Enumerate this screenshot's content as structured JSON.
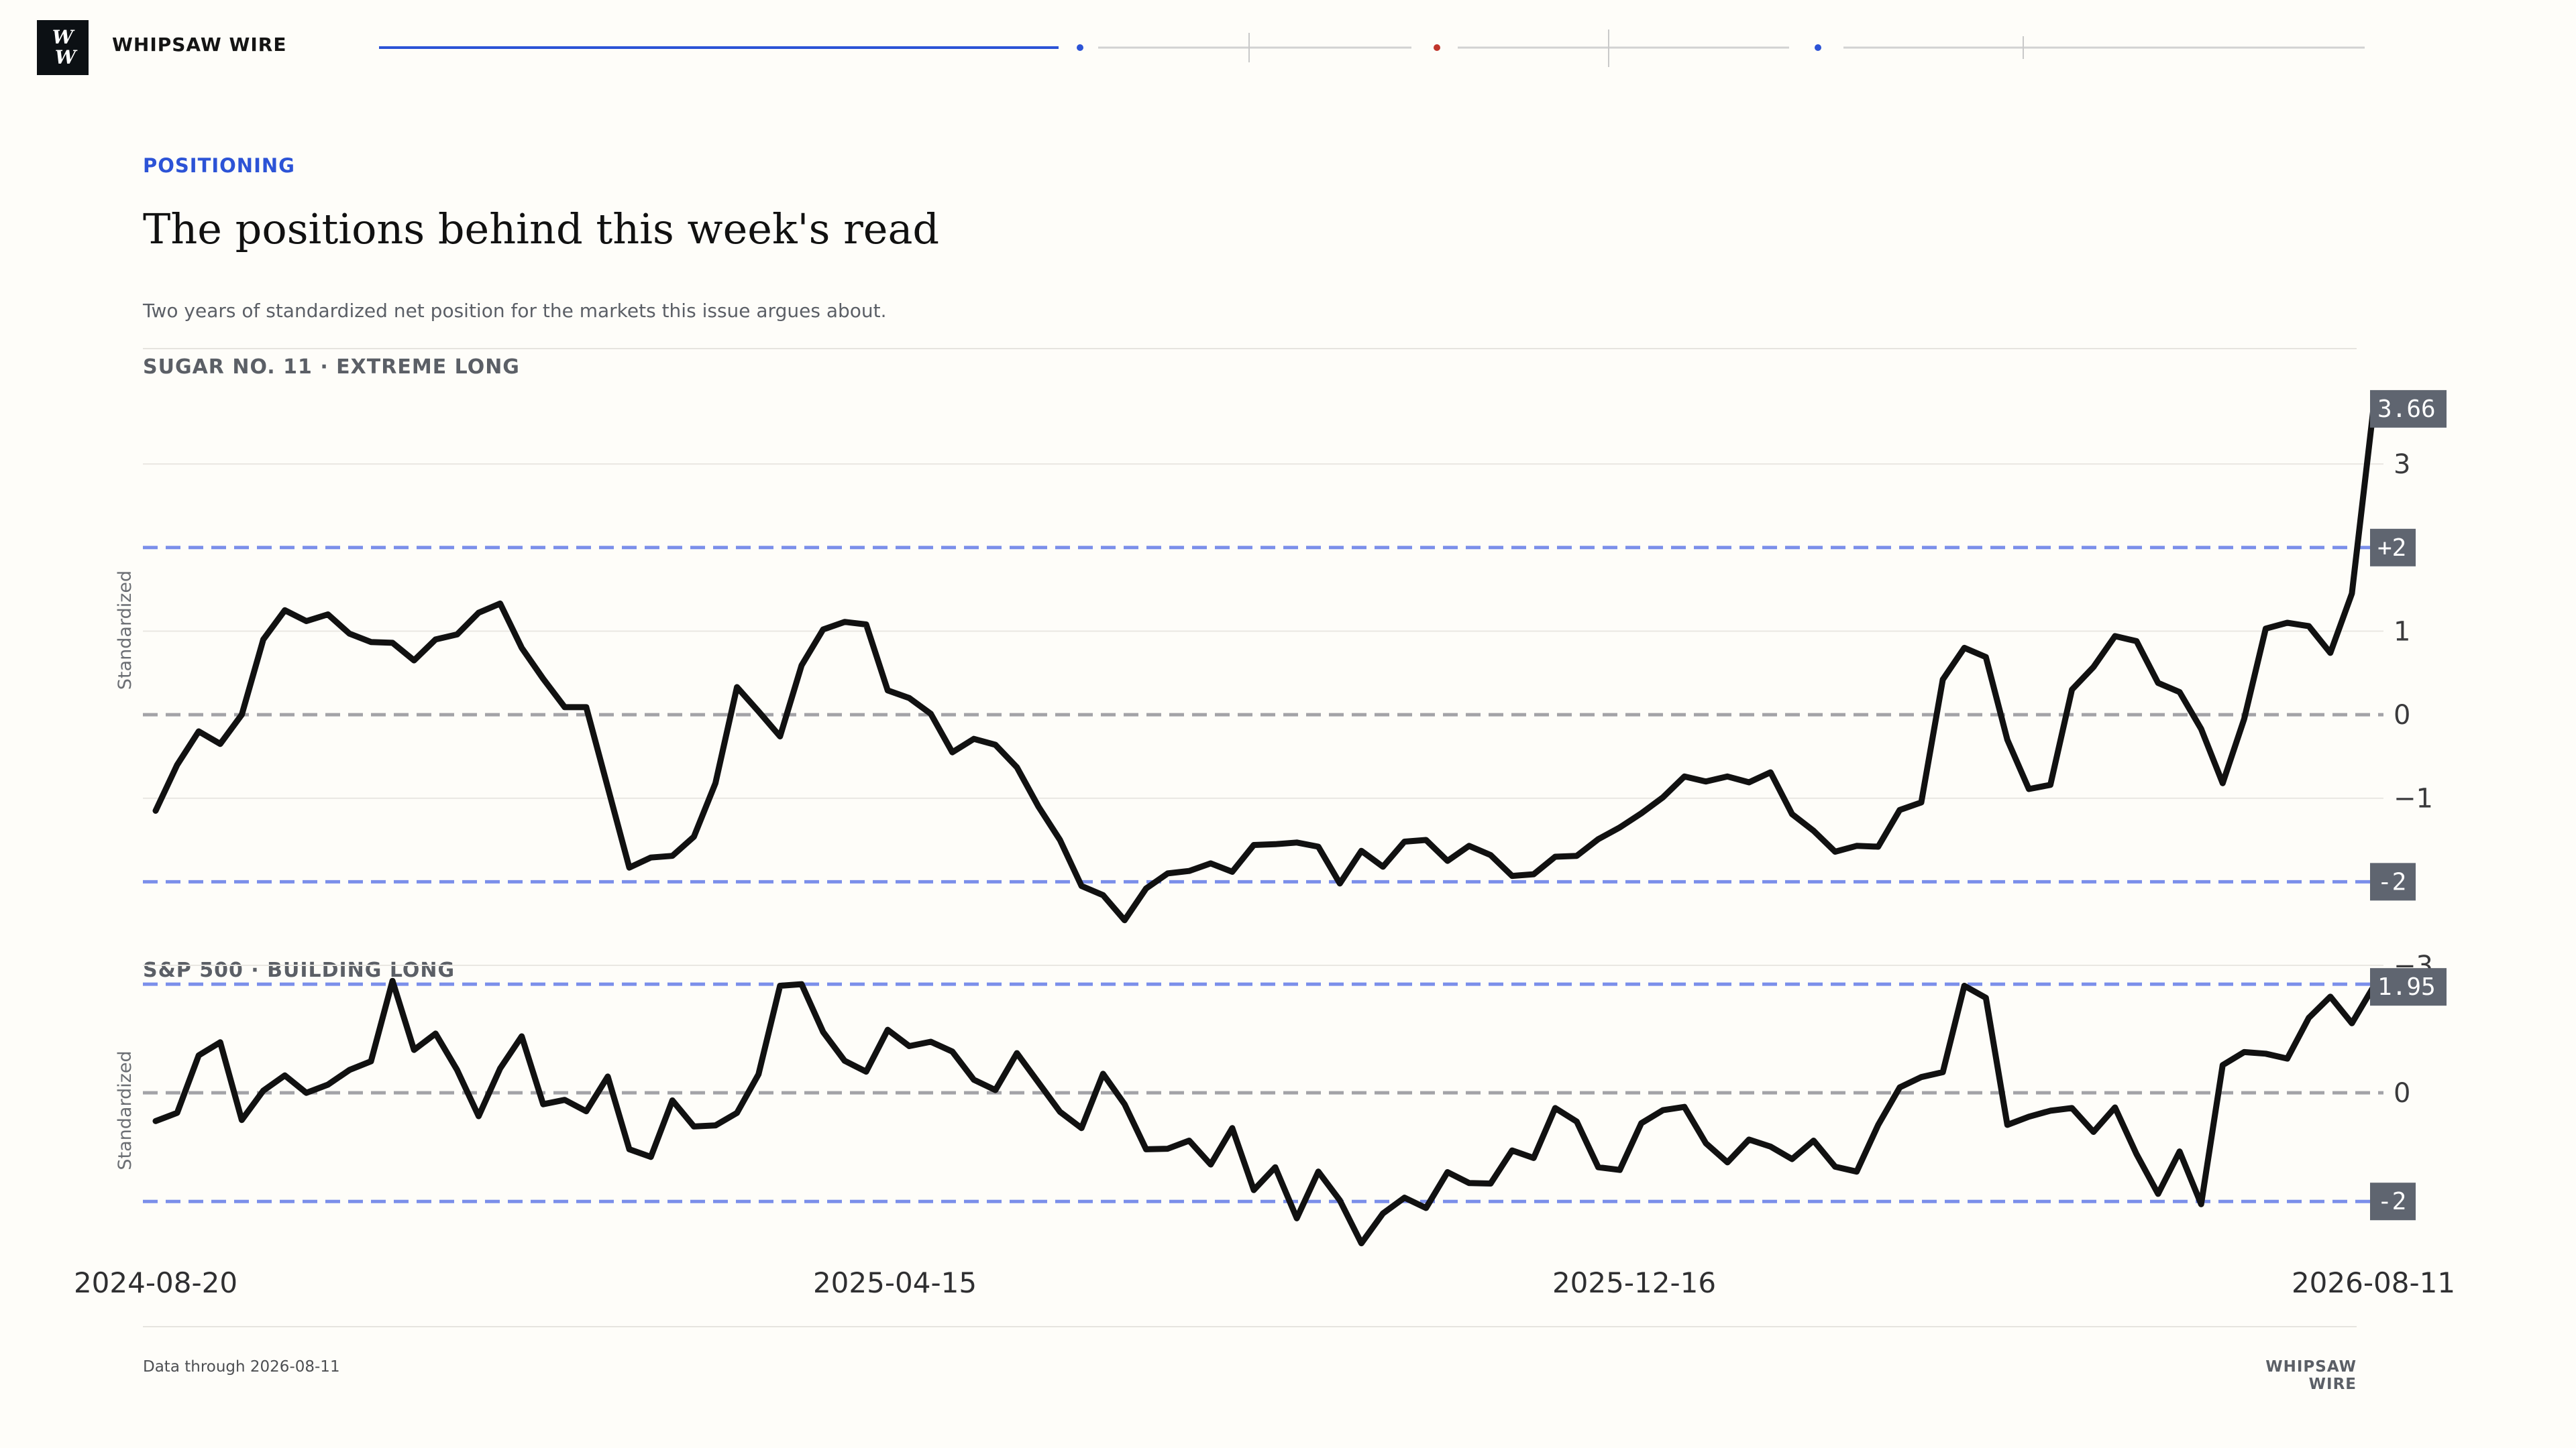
{
  "masthead": {
    "logo_line1": "W",
    "logo_line2": "W",
    "brand": "WHIPSAW WIRE"
  },
  "header": {
    "kicker": "POSITIONING",
    "title": "The positions behind this week's read",
    "subtitle": "Two years of standardized net position for the markets this issue argues about."
  },
  "footer": {
    "data_through": "Data through 2026-08-11",
    "brand": "WHIPSAW WIRE"
  },
  "colors": {
    "accent_blue": "#2c53d6",
    "band_blue": "#7b8fea",
    "zero_gray": "#a3a3a7",
    "line": "#111111",
    "badge": "#5f6570",
    "red_dot": "#c0352b"
  },
  "chart_data": [
    {
      "type": "line",
      "title": "SUGAR NO. 11 · EXTREME LONG",
      "ylabel": "Standardized",
      "ylim": [
        -3.0,
        3.9
      ],
      "yticks": [
        3,
        1,
        0,
        -1,
        -3
      ],
      "ytick_labels": [
        "3",
        "1",
        "0",
        "−1",
        "−3"
      ],
      "reference_lines": [
        {
          "value": 2,
          "label": "+2",
          "style": "band"
        },
        {
          "value": -2,
          "label": "-2",
          "style": "band"
        },
        {
          "value": 0,
          "label": "",
          "style": "zero"
        }
      ],
      "last_value_label": "3.66",
      "values": [
        -1.15,
        -0.6,
        -0.2,
        -0.35,
        0.0,
        0.9,
        1.25,
        1.12,
        1.2,
        0.97,
        0.87,
        0.86,
        0.65,
        0.9,
        0.96,
        1.22,
        1.33,
        0.8,
        0.43,
        0.09,
        0.09,
        -0.87,
        -1.83,
        -1.71,
        -1.69,
        -1.46,
        -0.82,
        0.33,
        0.04,
        -0.26,
        0.59,
        1.02,
        1.11,
        1.08,
        0.29,
        0.2,
        0.01,
        -0.45,
        -0.29,
        -0.36,
        -0.63,
        -1.1,
        -1.5,
        -2.05,
        -2.16,
        -2.46,
        -2.08,
        -1.9,
        -1.87,
        -1.78,
        -1.88,
        -1.56,
        -1.55,
        -1.53,
        -1.58,
        -2.02,
        -1.63,
        -1.82,
        -1.52,
        -1.5,
        -1.75,
        -1.57,
        -1.68,
        -1.93,
        -1.91,
        -1.7,
        -1.69,
        -1.49,
        -1.35,
        -1.18,
        -0.99,
        -0.74,
        -0.8,
        -0.74,
        -0.81,
        -0.69,
        -1.19,
        -1.39,
        -1.64,
        -1.57,
        -1.58,
        -1.14,
        -1.05,
        0.42,
        0.8,
        0.69,
        -0.3,
        -0.89,
        -0.84,
        0.3,
        0.57,
        0.94,
        0.88,
        0.38,
        0.27,
        -0.17,
        -0.82,
        -0.05,
        1.03,
        1.1,
        1.06,
        0.74,
        1.45,
        3.66
      ]
    },
    {
      "type": "line",
      "title": "S&P 500 · BUILDING LONG",
      "ylabel": "Standardized",
      "ylim": [
        -2.75,
        2.1
      ],
      "yticks": [
        0
      ],
      "ytick_labels": [
        "0"
      ],
      "reference_lines": [
        {
          "value": 2,
          "label": "",
          "style": "band"
        },
        {
          "value": -2,
          "label": "-2",
          "style": "band"
        },
        {
          "value": 0,
          "label": "",
          "style": "zero"
        }
      ],
      "last_value_label": "1.95",
      "x_start": "2024-08-20",
      "x_end": "2026-08-11",
      "xtick_labels": [
        "2024-08-20",
        "2025-04-15",
        "2025-12-16",
        "2026-08-11"
      ],
      "values": [
        -0.52,
        -0.37,
        0.69,
        0.93,
        -0.5,
        0.04,
        0.32,
        0.0,
        0.15,
        0.42,
        0.58,
        2.06,
        0.79,
        1.09,
        0.42,
        -0.43,
        0.45,
        1.04,
        -0.21,
        -0.13,
        -0.34,
        0.3,
        -1.04,
        -1.18,
        -0.14,
        -0.62,
        -0.6,
        -0.37,
        0.34,
        1.97,
        2.0,
        1.12,
        0.59,
        0.39,
        1.16,
        0.86,
        0.94,
        0.76,
        0.24,
        0.05,
        0.73,
        0.19,
        -0.35,
        -0.65,
        0.35,
        -0.21,
        -1.04,
        -1.03,
        -0.88,
        -1.32,
        -0.65,
        -1.79,
        -1.37,
        -2.31,
        -1.45,
        -1.98,
        -2.77,
        -2.22,
        -1.93,
        -2.12,
        -1.46,
        -1.66,
        -1.67,
        -1.06,
        -1.2,
        -0.28,
        -0.53,
        -1.37,
        -1.42,
        -0.56,
        -0.32,
        -0.26,
        -0.93,
        -1.28,
        -0.86,
        -0.99,
        -1.22,
        -0.88,
        -1.36,
        -1.45,
        -0.59,
        0.1,
        0.29,
        0.38,
        1.97,
        1.75,
        -0.59,
        -0.44,
        -0.33,
        -0.28,
        -0.72,
        -0.27,
        -1.13,
        -1.86,
        -1.08,
        -2.05,
        0.51,
        0.75,
        0.72,
        0.63,
        1.38,
        1.77,
        1.28,
        1.95
      ]
    }
  ]
}
